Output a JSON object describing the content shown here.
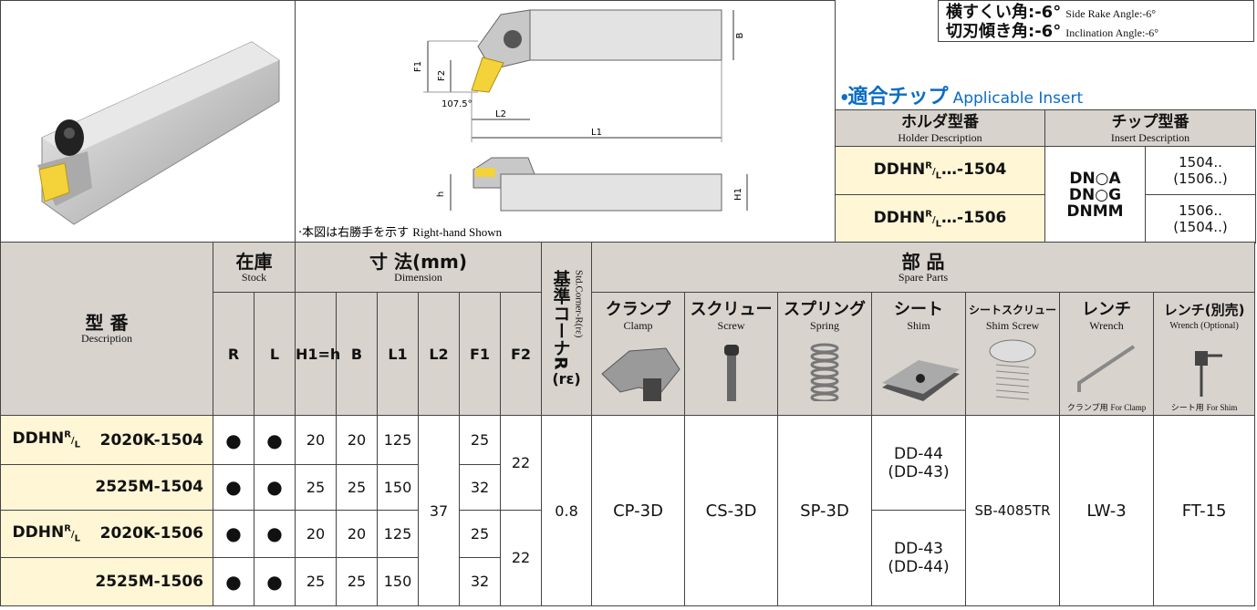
{
  "holder_prefix": {
    "base": "DDHN",
    "sup": "R",
    "sep": "/",
    "sub": "L"
  },
  "angles": [
    {
      "jp": "横すくい角:-6°",
      "en": "Side Rake Angle:-6°"
    },
    {
      "jp": "切刃傾き角:-6°",
      "en": "Inclination Angle:-6°"
    }
  ],
  "insert_section": {
    "title": "・適合チップ",
    "title_en": "Applicable Insert",
    "headers": [
      {
        "jp": "ホルダ型番",
        "en": "Holder Description"
      },
      {
        "jp": "チップ型番",
        "en": "Insert Description"
      }
    ],
    "insert_types": [
      "DN○A",
      "DN○G",
      "DNMM"
    ],
    "rows": [
      {
        "suffix": "…-1504",
        "sizes": [
          "1504..",
          "(1506..)"
        ]
      },
      {
        "suffix": "…-1506",
        "sizes": [
          "1506..",
          "(1504..)"
        ]
      }
    ]
  },
  "diagram": {
    "labels": {
      "f1": "F1",
      "f2": "F2",
      "b": "B",
      "angle": "107.5°",
      "l2": "L2",
      "l1": "L1",
      "h": "h",
      "h1": "H1"
    },
    "note": "·本図は右勝手を示す",
    "note_en": "Right-hand Shown"
  },
  "table": {
    "description": {
      "jp": "型 番",
      "en": "Description"
    },
    "stock": {
      "jp": "在庫",
      "en": "Stock",
      "cols": [
        "R",
        "L"
      ]
    },
    "dimension": {
      "jp": "寸 法(mm)",
      "en": "Dimension",
      "cols": [
        "H1=h",
        "B",
        "L1",
        "L2",
        "F1",
        "F2"
      ]
    },
    "corner": {
      "jp": "基準コーナR",
      "sym": "(rε)",
      "en": "Std.Corner-R(rε)"
    },
    "parts": {
      "jp": "部 品",
      "en": "Spare Parts",
      "cols": [
        {
          "jp": "クランプ",
          "en": "Clamp"
        },
        {
          "jp": "スクリュー",
          "en": "Screw"
        },
        {
          "jp": "スプリング",
          "en": "Spring"
        },
        {
          "jp": "シート",
          "en": "Shim"
        },
        {
          "jp": "シートスクリュー",
          "en": "Shim Screw"
        },
        {
          "jp": "レンチ",
          "en": "Wrench"
        },
        {
          "jp": "レンチ(別売)",
          "en": "Wrench (Optional)"
        }
      ],
      "wrench_notes": [
        {
          "jp": "クランプ用",
          "en": "For Clamp"
        },
        {
          "jp": "シート用",
          "en": "For Shim"
        }
      ]
    },
    "rows": [
      {
        "code": "2020K-1504",
        "stock": [
          "●",
          "●"
        ],
        "h1": 20,
        "b": 20,
        "l1": 125,
        "f1": 25
      },
      {
        "code": "2525M-1504",
        "stock": [
          "●",
          "●"
        ],
        "h1": 25,
        "b": 25,
        "l1": 150,
        "f1": 32
      },
      {
        "code": "2020K-1506",
        "stock": [
          "●",
          "●"
        ],
        "h1": 20,
        "b": 20,
        "l1": 125,
        "f1": 25
      },
      {
        "code": "2525M-1506",
        "stock": [
          "●",
          "●"
        ],
        "h1": 25,
        "b": 25,
        "l1": 150,
        "f1": 32
      }
    ],
    "l2": 37,
    "f2": [
      22,
      22
    ],
    "corner_value": 0.8,
    "parts_values": {
      "clamp": "CP-3D",
      "screw": "CS-3D",
      "spring": "SP-3D",
      "shim_screw": "SB-4085TR",
      "wrench": "LW-3",
      "wrench_optional": "FT-15"
    },
    "shims": [
      [
        "DD-44",
        "(DD-43)"
      ],
      [
        "DD-43",
        "(DD-44)"
      ]
    ]
  }
}
